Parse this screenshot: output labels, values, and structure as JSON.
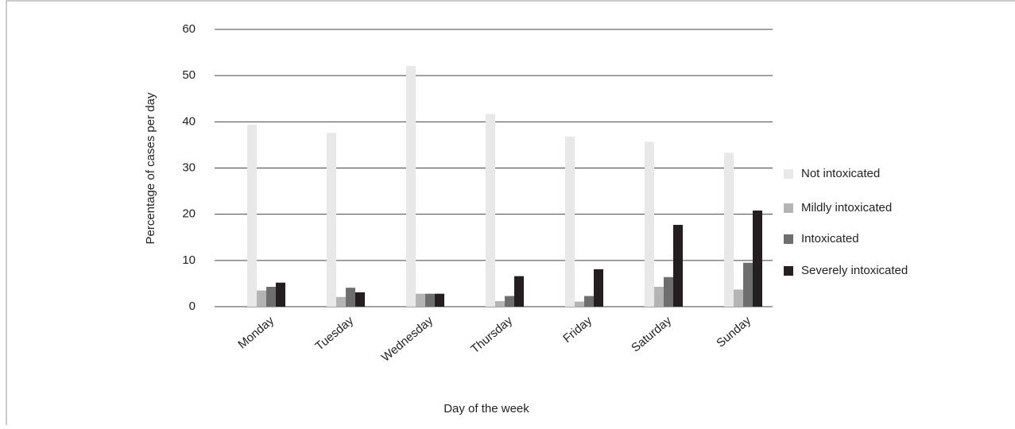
{
  "chart_data": {
    "type": "bar",
    "y_label": "Percentage of cases per day",
    "x_label": "Day of the week",
    "categories": [
      "Monday",
      "Tuesday",
      "Wednesday",
      "Thursday",
      "Friday",
      "Saturday",
      "Sunday"
    ],
    "series": [
      {
        "name": "Not intoxicated",
        "color": "#e8e8e8",
        "values": [
          39.4,
          37.6,
          52.1,
          41.7,
          36.8,
          35.7,
          33.3
        ]
      },
      {
        "name": "Mildly intoxicated",
        "color": "#b4b4b4",
        "values": [
          3.5,
          2.1,
          2.8,
          1.2,
          1.1,
          4.3,
          3.7
        ]
      },
      {
        "name": "Intoxicated",
        "color": "#6e6e6e",
        "values": [
          4.3,
          4.1,
          2.8,
          2.3,
          2.3,
          6.4,
          9.5
        ]
      },
      {
        "name": "Severely intoxicated",
        "color": "#231f20",
        "values": [
          5.2,
          3.1,
          2.8,
          6.6,
          8.1,
          17.7,
          20.8
        ]
      }
    ],
    "ylim": [
      0,
      60
    ],
    "yticks": [
      0,
      10,
      20,
      30,
      40,
      50,
      60
    ],
    "grid": true,
    "legend": "right"
  }
}
